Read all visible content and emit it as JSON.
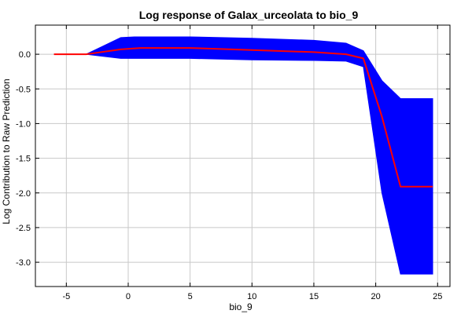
{
  "chart_data": {
    "type": "area",
    "title": "Log response of Galax_urceolata to bio_9",
    "xlabel": "bio_9",
    "ylabel": "Log Contribution to Raw Prediction",
    "xlim": [
      -7.5,
      26
    ],
    "ylim": [
      -3.35,
      0.42
    ],
    "xticks": [
      -5,
      0,
      5,
      10,
      15,
      20,
      25
    ],
    "xtick_labels": [
      "-5",
      "0",
      "5",
      "10",
      "15",
      "20",
      "25"
    ],
    "yticks": [
      0.0,
      -0.5,
      -1.0,
      -1.5,
      -2.0,
      -2.5,
      -3.0
    ],
    "ytick_labels": [
      "0.0",
      "-0.5",
      "-1.0",
      "-1.5",
      "-2.0",
      "-2.5",
      "-3.0"
    ],
    "grid": true,
    "band": {
      "color": "#0000ff",
      "x": [
        -6.0,
        -3.4,
        -0.6,
        0.5,
        5.0,
        10.0,
        15.0,
        17.6,
        19.0,
        20.5,
        22.0,
        24.6
      ],
      "upper": [
        0.0,
        0.0,
        0.24,
        0.25,
        0.25,
        0.23,
        0.2,
        0.16,
        0.05,
        -0.38,
        -0.64,
        -0.64
      ],
      "lower": [
        0.0,
        0.0,
        -0.06,
        -0.06,
        -0.06,
        -0.08,
        -0.09,
        -0.1,
        -0.18,
        -2.0,
        -3.17,
        -3.17
      ]
    },
    "series": [
      {
        "color": "#ff0000",
        "x": [
          -6.0,
          -3.4,
          -0.6,
          1.0,
          5.0,
          10.0,
          15.0,
          17.6,
          19.0,
          20.5,
          22.0,
          24.6
        ],
        "y": [
          0.0,
          0.0,
          0.07,
          0.09,
          0.09,
          0.06,
          0.03,
          0.0,
          -0.06,
          -0.9,
          -1.91,
          -1.91
        ]
      }
    ]
  }
}
